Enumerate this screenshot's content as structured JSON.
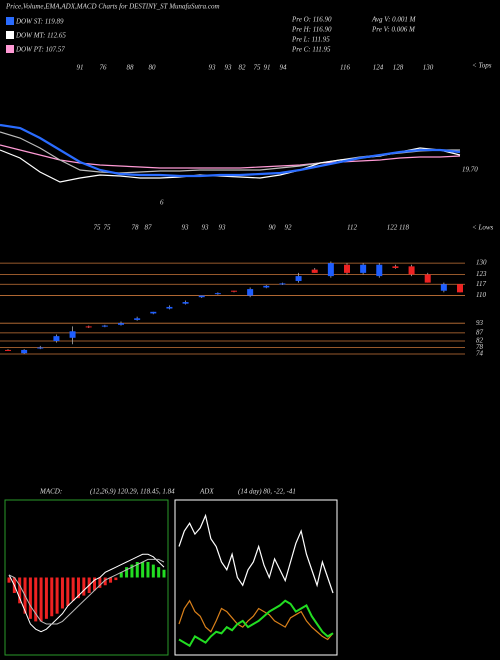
{
  "header": {
    "title": "Price,Volume,EMA,ADX,MACD Charts for DESTINY_ST MunafaSutra.com",
    "legend": [
      {
        "text": "DOW ST: 119.89",
        "color": "#2a6cff"
      },
      {
        "text": "DOW MT: 112.65",
        "color": "#ffffff"
      },
      {
        "text": "DOW PT: 107.57",
        "color": "#ff9ad5"
      }
    ],
    "stats": [
      "Pre  O: 116.90",
      "Pre  H: 116.90",
      "Pre  L: 111.95",
      "Pre  C: 111.95",
      "Avg V: 0.001 M",
      "Pre  V: 0.006  M"
    ]
  },
  "chart_data": [
    {
      "type": "line",
      "ylim": [
        0,
        100
      ],
      "tops_label": "< Tops",
      "lows_label": "< Lows",
      "annotations": [
        "19.70",
        6
      ],
      "top_labels": [
        91,
        76,
        88,
        80,
        93,
        93,
        82,
        75,
        91,
        94,
        116,
        124,
        128,
        130
      ],
      "low_labels": [
        75,
        75,
        78,
        87,
        93,
        93,
        93,
        90,
        92,
        112,
        122,
        118
      ],
      "series": [
        {
          "color": "#ff9ad5",
          "values": [
            50,
            45,
            40,
            35,
            32,
            30,
            29,
            28,
            27,
            27,
            27,
            27,
            27,
            28,
            29,
            30,
            32,
            33,
            34,
            35,
            37,
            38,
            38,
            39
          ]
        },
        {
          "color": "#bbbbbb",
          "values": [
            63,
            57,
            47,
            35,
            25,
            23,
            22,
            23,
            24,
            24,
            25,
            25,
            25,
            25,
            27,
            29,
            32,
            35,
            38,
            40,
            42,
            44,
            45,
            45
          ]
        },
        {
          "color": "#ffffff",
          "values": [
            45,
            37,
            23,
            13,
            17,
            20,
            19,
            17,
            17,
            18,
            20,
            19,
            18,
            17,
            20,
            25,
            32,
            35,
            37,
            39,
            43,
            47,
            45,
            40
          ]
        },
        {
          "color": "#2a6cff",
          "values": [
            70,
            67,
            57,
            45,
            33,
            25,
            21,
            20,
            20,
            19,
            19,
            20,
            20,
            21,
            22,
            25,
            29,
            33,
            37,
            40,
            43,
            45,
            45,
            43
          ]
        }
      ]
    },
    {
      "type": "candlestick",
      "ylim": [
        70,
        135
      ],
      "up_color": "#1e5eff",
      "down_color": "#ee2222",
      "level_color": "#c8763a",
      "levels": [
        130,
        123,
        117,
        110,
        93,
        87,
        82,
        78,
        74
      ],
      "open": [
        76.5,
        74.5,
        78,
        82,
        84,
        91,
        91,
        92,
        95,
        99,
        102,
        105,
        109,
        111,
        113,
        110,
        115,
        117,
        119,
        126,
        122,
        129,
        124,
        122,
        128,
        128,
        123,
        113,
        117
      ],
      "close": [
        76,
        76.5,
        78,
        85,
        88,
        90.5,
        91.5,
        93,
        96,
        100,
        103,
        106,
        110,
        111.5,
        112.5,
        114,
        116,
        117.5,
        122,
        124,
        130,
        124,
        129,
        129,
        127,
        123,
        118,
        117,
        112
      ],
      "high": [
        77,
        77,
        79,
        86,
        91,
        91.5,
        92,
        94,
        97,
        100,
        104,
        107,
        110,
        112,
        113,
        115,
        116.5,
        118,
        124,
        127,
        131,
        130,
        130,
        130,
        129,
        129,
        124,
        118,
        117
      ],
      "low": [
        76,
        74,
        77,
        81,
        80,
        90,
        90.5,
        91.5,
        94.5,
        98.5,
        101.5,
        104.5,
        108.5,
        110.5,
        112,
        109,
        114.5,
        116.5,
        118,
        124,
        121,
        123,
        123,
        121,
        126.5,
        122,
        118,
        112,
        112
      ]
    },
    {
      "type": "macd",
      "label": "MACD:",
      "text": "(12,26,9) 120.29, 118.45, 1.84",
      "ylim": [
        -30,
        30
      ],
      "frame_color": "#2a9a2a",
      "histogram": [
        -2,
        -6,
        -10,
        -14,
        -16,
        -17,
        -17,
        -16,
        -15,
        -14,
        -12,
        -11,
        -9,
        -8,
        -7,
        -6,
        -5,
        -4,
        -3,
        -2,
        -1,
        2,
        4,
        5,
        6,
        6,
        6,
        5,
        4,
        3
      ],
      "series": [
        {
          "color": "#ffffff",
          "values": [
            1,
            -3,
            -8,
            -13,
            -18,
            -20,
            -21,
            -20,
            -18,
            -16,
            -14,
            -11,
            -9,
            -7,
            -5,
            -3,
            -1,
            0,
            2,
            3,
            4,
            5,
            6,
            7,
            8,
            9,
            9,
            8,
            6,
            4
          ]
        },
        {
          "color": "#bbbbbb",
          "values": [
            1,
            0,
            -3,
            -7,
            -11,
            -14,
            -17,
            -18,
            -18,
            -18,
            -17,
            -15,
            -13,
            -11,
            -9,
            -7,
            -5,
            -3,
            -1,
            0,
            1,
            2,
            3,
            4,
            5,
            6,
            7,
            7,
            7,
            6
          ]
        }
      ]
    },
    {
      "type": "adx",
      "label": "ADX",
      "text": "(14  day) 80,  -22,  -41",
      "ylim": [
        0,
        100
      ],
      "series": [
        {
          "color": "#ffffff",
          "values": [
            70,
            80,
            85,
            78,
            82,
            90,
            75,
            70,
            60,
            55,
            65,
            50,
            45,
            55,
            60,
            70,
            58,
            50,
            62,
            55,
            48,
            60,
            72,
            80,
            65,
            55,
            45,
            60,
            50,
            40
          ]
        },
        {
          "color": "#d9801a",
          "values": [
            20,
            30,
            35,
            28,
            25,
            18,
            15,
            22,
            30,
            28,
            24,
            20,
            18,
            22,
            25,
            30,
            28,
            26,
            22,
            20,
            18,
            24,
            26,
            28,
            22,
            18,
            15,
            12,
            10,
            14
          ]
        },
        {
          "color": "#22dd22",
          "values": [
            10,
            8,
            6,
            12,
            10,
            8,
            12,
            15,
            14,
            18,
            16,
            20,
            22,
            18,
            20,
            22,
            25,
            28,
            30,
            32,
            35,
            33,
            28,
            30,
            32,
            25,
            20,
            15,
            12,
            14
          ]
        }
      ]
    }
  ]
}
